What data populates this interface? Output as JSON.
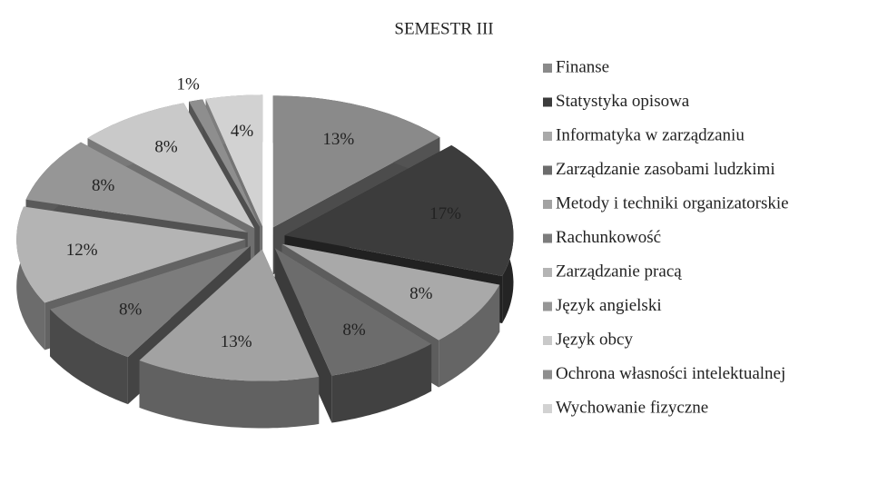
{
  "chart_data": {
    "type": "pie3d",
    "title": "SEMESTR III",
    "categories": [
      "Finanse",
      "Statystyka opisowa",
      "Informatyka w zarządzaniu",
      "Zarządzanie zasobami ludzkimi",
      "Metody i techniki organizatorskie",
      "Rachunkowość",
      "Zarządzanie pracą",
      "Język angielski",
      "Język obcy",
      "Ochrona własności intelektualnej",
      "Wychowanie fizyczne"
    ],
    "values": [
      13,
      17,
      8,
      8,
      13,
      8,
      12,
      8,
      8,
      1,
      4
    ],
    "value_labels": [
      "13%",
      "17%",
      "8%",
      "8%",
      "13%",
      "8%",
      "12%",
      "8%",
      "8%",
      "1%",
      "4%"
    ],
    "colors": [
      "#8a8a8a",
      "#3c3c3c",
      "#a9a9a9",
      "#6c6c6c",
      "#a2a2a2",
      "#7c7c7c",
      "#b4b4b4",
      "#969696",
      "#c9c9c9",
      "#8e8e8e",
      "#d2d2d2"
    ],
    "legend": "right"
  }
}
